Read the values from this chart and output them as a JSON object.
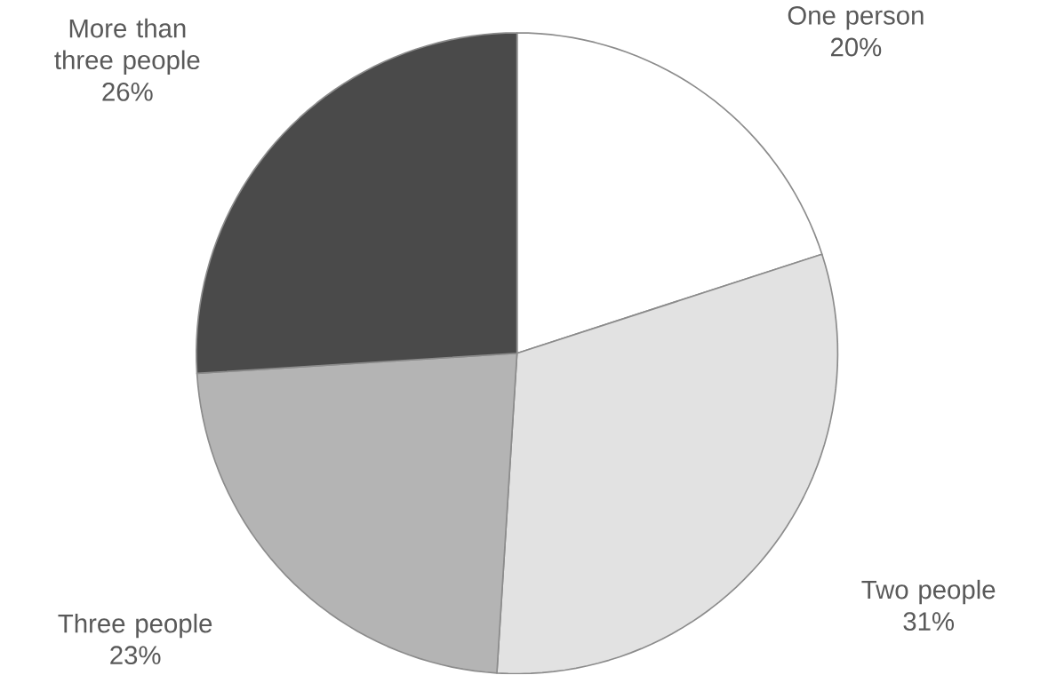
{
  "chart_data": {
    "type": "pie",
    "categories": [
      "One person",
      "Two people",
      "Three people",
      "More than three people"
    ],
    "values": [
      20,
      31,
      23,
      26
    ],
    "value_labels": [
      "20%",
      "31%",
      "23%",
      "26%"
    ],
    "colors": [
      "#ffffff",
      "#e2e2e2",
      "#b4b4b4",
      "#4a4a4a"
    ]
  }
}
